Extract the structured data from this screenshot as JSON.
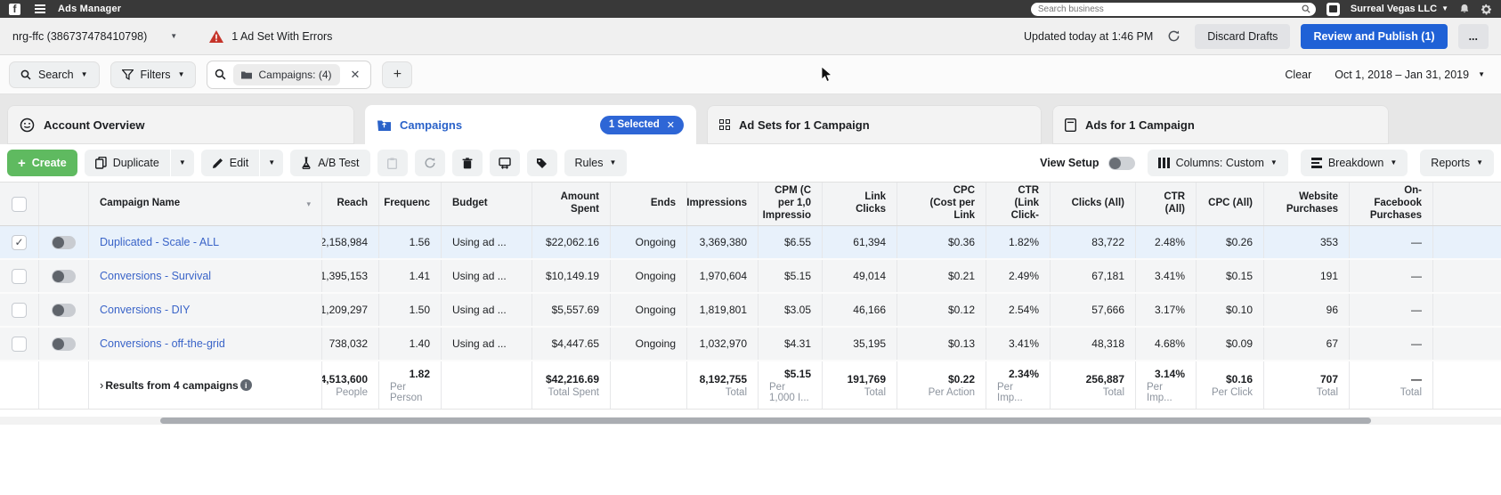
{
  "topbar": {
    "title": "Ads Manager",
    "search_placeholder": "Search business",
    "business_name": "Surreal Vegas LLC"
  },
  "account_bar": {
    "account_name": "nrg-ffc (386737478410798)",
    "error_text": "1 Ad Set With Errors",
    "updated_text": "Updated today at 1:46 PM",
    "discard_label": "Discard Drafts",
    "publish_label": "Review and Publish (1)",
    "more_label": "..."
  },
  "filter_bar": {
    "search_label": "Search",
    "filters_label": "Filters",
    "filter_chip": "Campaigns:  (4)",
    "clear_label": "Clear",
    "date_range": "Oct 1, 2018 – Jan 31, 2019"
  },
  "tabs": {
    "account_overview": "Account Overview",
    "campaigns": "Campaigns",
    "campaigns_badge": "1 Selected",
    "ad_sets": "Ad Sets for 1 Campaign",
    "ads": "Ads for 1 Campaign"
  },
  "toolbar": {
    "create": "Create",
    "duplicate": "Duplicate",
    "edit": "Edit",
    "ab_test": "A/B Test",
    "rules": "Rules",
    "view_setup": "View Setup",
    "columns": "Columns: Custom",
    "breakdown": "Breakdown",
    "reports": "Reports"
  },
  "table": {
    "columns": [
      "Campaign Name",
      "Reach",
      "Frequenc",
      "Budget",
      "Amount\nSpent",
      "Ends",
      "Impressions",
      "CPM (C\nper 1,0\nImpressio",
      "Link Clicks",
      "CPC\n(Cost per\nLink",
      "CTR\n(Link\nClick-",
      "Clicks (All)",
      "CTR\n(All)",
      "CPC (All)",
      "Website\nPurchases",
      "On-\nFacebook\nPurchases"
    ],
    "rows": [
      {
        "selected": true,
        "checked": true,
        "name": "Duplicated - Scale - ALL",
        "cells": [
          "2,158,984",
          "1.56",
          "Using ad ...",
          "$22,062.16",
          "Ongoing",
          "3,369,380",
          "$6.55",
          "61,394",
          "$0.36",
          "1.82%",
          "83,722",
          "2.48%",
          "$0.26",
          "353",
          "—"
        ]
      },
      {
        "selected": false,
        "checked": false,
        "name": "Conversions - Survival",
        "cells": [
          "1,395,153",
          "1.41",
          "Using ad ...",
          "$10,149.19",
          "Ongoing",
          "1,970,604",
          "$5.15",
          "49,014",
          "$0.21",
          "2.49%",
          "67,181",
          "3.41%",
          "$0.15",
          "191",
          "—"
        ]
      },
      {
        "selected": false,
        "checked": false,
        "name": "Conversions - DIY",
        "cells": [
          "1,209,297",
          "1.50",
          "Using ad ...",
          "$5,557.69",
          "Ongoing",
          "1,819,801",
          "$3.05",
          "46,166",
          "$0.12",
          "2.54%",
          "57,666",
          "3.17%",
          "$0.10",
          "96",
          "—"
        ]
      },
      {
        "selected": false,
        "checked": false,
        "name": "Conversions - off-the-grid",
        "cells": [
          "738,032",
          "1.40",
          "Using ad ...",
          "$4,447.65",
          "Ongoing",
          "1,032,970",
          "$4.31",
          "35,195",
          "$0.13",
          "3.41%",
          "48,318",
          "4.68%",
          "$0.09",
          "67",
          "—"
        ]
      }
    ],
    "summary": {
      "label": "Results from 4 campaigns",
      "cells": [
        {
          "value": "4,513,600",
          "sub": "People"
        },
        {
          "value": "1.82",
          "sub": "Per Person"
        },
        {
          "value": "",
          "sub": ""
        },
        {
          "value": "$42,216.69",
          "sub": "Total Spent"
        },
        {
          "value": "",
          "sub": ""
        },
        {
          "value": "8,192,755",
          "sub": "Total"
        },
        {
          "value": "$5.15",
          "sub": "Per 1,000 I..."
        },
        {
          "value": "191,769",
          "sub": "Total"
        },
        {
          "value": "$0.22",
          "sub": "Per Action"
        },
        {
          "value": "2.34%",
          "sub": "Per Imp..."
        },
        {
          "value": "256,887",
          "sub": "Total"
        },
        {
          "value": "3.14%",
          "sub": "Per Imp..."
        },
        {
          "value": "$0.16",
          "sub": "Per Click"
        },
        {
          "value": "707",
          "sub": "Total"
        },
        {
          "value": "—",
          "sub": "Total"
        }
      ]
    }
  },
  "colors": {
    "topbar_bg": "#393939",
    "primary_blue": "#1f61d6",
    "link_blue": "#3a64c8",
    "create_green": "#5fba60",
    "error_red": "#c5342a",
    "selected_row": "#e8f1fb"
  }
}
